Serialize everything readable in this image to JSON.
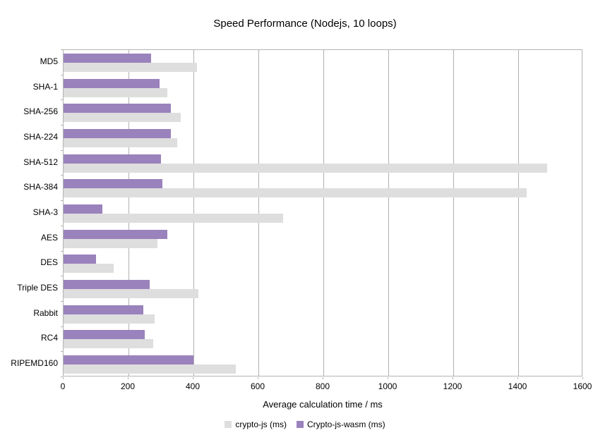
{
  "chart_data": {
    "type": "bar",
    "orientation": "horizontal",
    "title": "Speed Performance (Nodejs, 10 loops)",
    "xlabel": "Average calculation time / ms",
    "ylabel": "",
    "categories": [
      "MD5",
      "SHA-1",
      "SHA-256",
      "SHA-224",
      "SHA-512",
      "SHA-384",
      "SHA-3",
      "AES",
      "DES",
      "Triple DES",
      "Rabbit",
      "RC4",
      "RIPEMD160"
    ],
    "series": [
      {
        "name": "crypto-js (ms)",
        "color": "#dedede",
        "values": [
          410,
          320,
          360,
          350,
          1490,
          1425,
          675,
          290,
          155,
          415,
          280,
          275,
          530
        ]
      },
      {
        "name": "Crypto-js-wasm (ms)",
        "color": "#9a82bc",
        "values": [
          270,
          295,
          330,
          330,
          300,
          305,
          120,
          320,
          100,
          265,
          245,
          250,
          400
        ]
      }
    ],
    "xlim": [
      0,
      1600
    ],
    "xticks": [
      0,
      200,
      400,
      600,
      800,
      1000,
      1200,
      1400,
      1600
    ],
    "grid": "vertical",
    "legend_position": "bottom",
    "row_order_in_group": [
      "Crypto-js-wasm (ms)",
      "crypto-js (ms)"
    ],
    "colors": {
      "background": "#ffffff",
      "plot_border": "#b3b3b3",
      "gridline": "#b0b0b0",
      "text": "#000000"
    }
  }
}
